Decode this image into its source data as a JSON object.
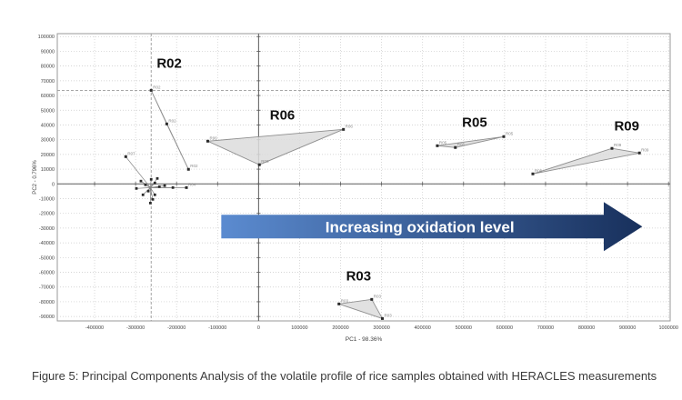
{
  "caption": "Figure 5: Principal Components Analysis of the volatile profile of rice samples obtained with HERACLES measurements",
  "chart_data": {
    "type": "scatter",
    "title": "",
    "xlabel": "PC1 - 98.36%",
    "ylabel": "PC2 - 0.796%",
    "xlim": [
      -491000,
      1004000
    ],
    "ylim": [
      -93000,
      102000
    ],
    "grid": "dotted",
    "x_ticks": [
      -400000,
      -300000,
      -200000,
      -100000,
      0,
      100000,
      200000,
      300000,
      400000,
      500000,
      600000,
      700000,
      800000,
      900000,
      1000000
    ],
    "y_ticks": [
      100000,
      90000,
      80000,
      70000,
      60000,
      50000,
      40000,
      30000,
      20000,
      10000,
      0,
      -10000,
      -20000,
      -30000,
      -40000,
      -50000,
      -60000,
      -70000,
      -80000,
      -90000
    ],
    "crosshair": {
      "x": -262000,
      "y": 63500
    },
    "clusters": [
      {
        "name": "R02",
        "label_pos": [
          -218000,
          79000
        ],
        "points": [
          [
            -262000,
            63500
          ],
          [
            -224000,
            40700
          ],
          [
            -171000,
            9900
          ]
        ]
      },
      {
        "name": "R06",
        "label_pos": [
          58000,
          43800
        ],
        "points": [
          [
            -124000,
            29000
          ],
          [
            207000,
            37000
          ],
          [
            2000,
            13000
          ]
        ]
      },
      {
        "name": "R05",
        "label_pos": [
          527000,
          38900
        ],
        "points": [
          [
            436000,
            25900
          ],
          [
            598000,
            32100
          ],
          [
            480000,
            24700
          ]
        ]
      },
      {
        "name": "R09",
        "label_pos": [
          898000,
          36400
        ],
        "points": [
          [
            669000,
            6800
          ],
          [
            862000,
            24100
          ],
          [
            929000,
            21000
          ]
        ]
      },
      {
        "name": "R03",
        "label_pos": [
          244000,
          -65400
        ],
        "points": [
          [
            196000,
            -81500
          ],
          [
            276000,
            -78400
          ],
          [
            302000,
            -91400
          ]
        ]
      }
    ],
    "origin_cluster": {
      "centroid": [
        -264000,
        -2500
      ],
      "points": [
        [
          -287000,
          1900
        ],
        [
          -276000,
          -600
        ],
        [
          -262000,
          3100
        ],
        [
          -253000,
          600
        ],
        [
          -242000,
          -1900
        ],
        [
          -269000,
          -4900
        ],
        [
          -282000,
          -7400
        ],
        [
          -253000,
          -7400
        ],
        [
          -229000,
          -1200
        ],
        [
          -209000,
          -2500
        ],
        [
          -298000,
          -3100
        ],
        [
          -258000,
          -10500
        ],
        [
          -247000,
          3700
        ],
        [
          -264000,
          -13000
        ]
      ],
      "labeled_points": [
        {
          "label": "R07",
          "x": -324000,
          "y": 18500
        },
        {
          "label": "R04",
          "x": -176000,
          "y": -2500
        }
      ]
    },
    "annotation_arrow": {
      "label": "Increasing oxidation level",
      "x_start": -91000,
      "x_body_end": 842000,
      "x_tip": 936000,
      "y_center": -29000,
      "color_start": "#5b8bd0",
      "color_end": "#18305c",
      "text_color": "#ffffff"
    },
    "colors": {
      "plot_border": "#999999",
      "gridline": "#c9c9c9",
      "crosshair": "#9a9a9a",
      "axis": "#5a5a5a",
      "cluster_fill": "#dcdcdc",
      "cluster_stroke": "#8f8f8f",
      "point": "#2a2a2a",
      "point_label": "#8a8a8a",
      "cluster_label": "#101010",
      "tick_label": "#444444"
    }
  }
}
